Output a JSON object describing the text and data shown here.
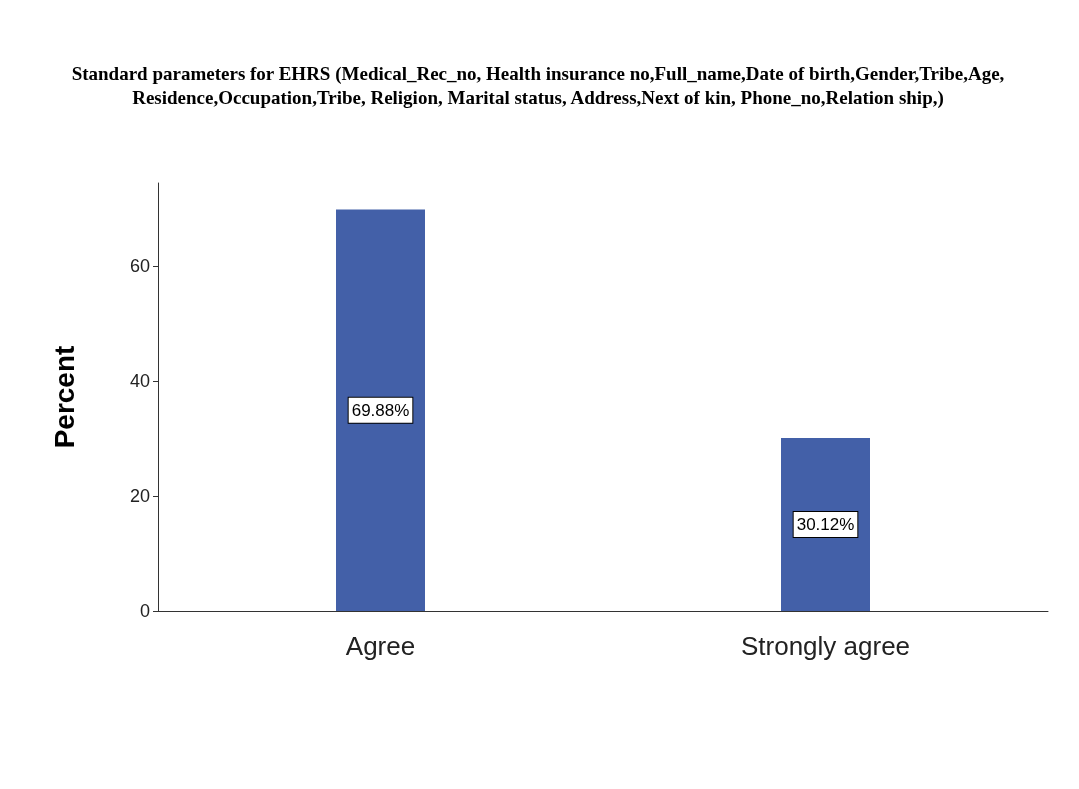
{
  "chart_data": {
    "type": "bar",
    "title": "Standard parameters for EHRS (Medical_Rec_no, Health insurance no,Full_name,Date of birth,Gender,Tribe,Age,Residence,Occupation,Tribe, Religion, Marital status, Address,Next of kin, Phone_no,Relation ship,)",
    "ylabel": "Percent",
    "categories": [
      "Agree",
      "Strongly agree"
    ],
    "values": [
      69.88,
      30.12
    ],
    "value_labels": [
      "69.88%",
      "30.12%"
    ],
    "color": "#4360a8",
    "ylim": [
      0,
      74.5
    ],
    "yticks": [
      0,
      20,
      40,
      60
    ],
    "grid": false
  }
}
